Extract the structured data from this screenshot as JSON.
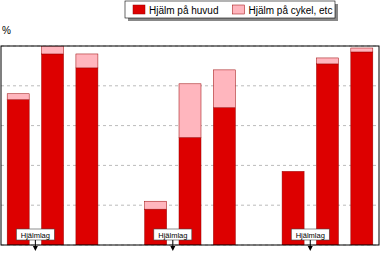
{
  "chart_data": {
    "type": "bar",
    "stacked": true,
    "y_label": "%",
    "categories": [
      null,
      null,
      null,
      null,
      null,
      null,
      null,
      null,
      null,
      null,
      null
    ],
    "series": [
      {
        "name": "Hjälm på huvud",
        "color": "#dd0000",
        "values": [
          73,
          96,
          89,
          null,
          18,
          54,
          69,
          null,
          37,
          91,
          97
        ]
      },
      {
        "name": "Hjälm på cykel, etc",
        "color": "#ffb6be",
        "values": [
          3,
          4,
          7,
          null,
          4,
          27,
          19,
          null,
          0,
          3,
          2
        ]
      }
    ],
    "ylim": [
      0,
      100
    ],
    "yticks": [
      0,
      20,
      40,
      60,
      80,
      100
    ],
    "grid": true,
    "tick_labels": false,
    "legend": "top",
    "annotations": [
      {
        "text": "Hjälmlag",
        "x": 0.5
      },
      {
        "text": "Hjälmlag",
        "x": 4.5
      },
      {
        "text": "Hjälmlag",
        "x": 8.5
      }
    ]
  }
}
